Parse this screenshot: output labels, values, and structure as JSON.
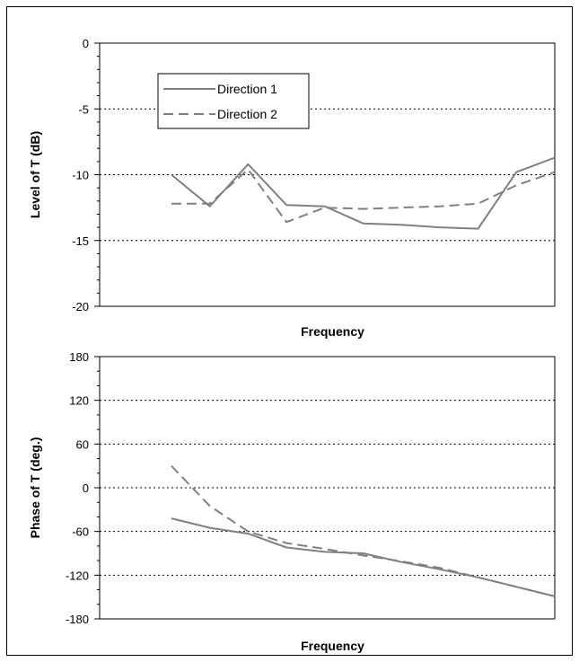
{
  "chart_data": [
    {
      "type": "line",
      "xlabel": "Frequency",
      "ylabel": "Level of T (dB)",
      "ylim": [
        -20,
        0
      ],
      "yticks": [
        0,
        -5,
        -10,
        -15,
        -20
      ],
      "grid": "horizontal dotted at labeled ticks between limits",
      "x": [
        0,
        1,
        2,
        3,
        4,
        5,
        6,
        7,
        8,
        9,
        10
      ],
      "legend": {
        "placement": "top-left"
      },
      "series": [
        {
          "name": "Direction 1",
          "style": "solid",
          "color": "#808080",
          "values": [
            -10.0,
            -12.4,
            -9.2,
            -12.3,
            -12.4,
            -13.7,
            -13.8,
            -14.0,
            -14.1,
            -9.8,
            -8.7
          ]
        },
        {
          "name": "Direction 2",
          "style": "dashed",
          "color": "#808080",
          "values": [
            -12.2,
            -12.2,
            -9.6,
            -13.6,
            -12.5,
            -12.6,
            -12.5,
            -12.4,
            -12.2,
            -10.8,
            -9.8
          ]
        }
      ]
    },
    {
      "type": "line",
      "xlabel": "Frequency",
      "ylabel": "Phase of T (deg.)",
      "ylim": [
        -180,
        180
      ],
      "yticks": [
        180,
        120,
        60,
        0,
        -60,
        -120,
        -180
      ],
      "grid": "horizontal dotted at labeled ticks between limits",
      "x": [
        0,
        1,
        2,
        3,
        4,
        5,
        6,
        7,
        8,
        9,
        10
      ],
      "series": [
        {
          "name": "Direction 1",
          "style": "solid",
          "color": "#808080",
          "values": [
            -42,
            -55,
            -63,
            -82,
            -88,
            -90,
            -102,
            -112,
            -123,
            -136,
            -149
          ]
        },
        {
          "name": "Direction 2",
          "style": "dashed",
          "color": "#808080",
          "values": [
            30,
            -25,
            -60,
            -76,
            -84,
            -93,
            -101,
            -110,
            -123,
            -136,
            -149
          ]
        }
      ]
    }
  ]
}
